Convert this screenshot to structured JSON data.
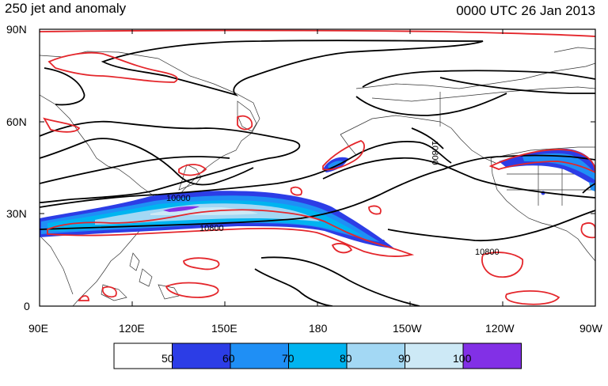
{
  "title_left": "250 jet and anomaly",
  "title_right": "0000 UTC 26 Jan 2013",
  "lat_labels": [
    "90N",
    "60N",
    "30N",
    "0"
  ],
  "lon_labels": [
    "90E",
    "120E",
    "150E",
    "180",
    "150W",
    "120W",
    "90W"
  ],
  "contour_labels": [
    "10000",
    "10800",
    "10800",
    "10800"
  ],
  "colorbar": {
    "labels": [
      "50",
      "60",
      "70",
      "80",
      "90",
      "100"
    ],
    "colors": [
      "#ffffff",
      "#2c3de6",
      "#1f8ff5",
      "#00b4f0",
      "#a3d8f4",
      "#cde9f6",
      "#8230e6"
    ]
  },
  "colors": {
    "height_contour": "#000000",
    "anomaly_contour": "#e4262b",
    "coastline": "#333333"
  }
}
